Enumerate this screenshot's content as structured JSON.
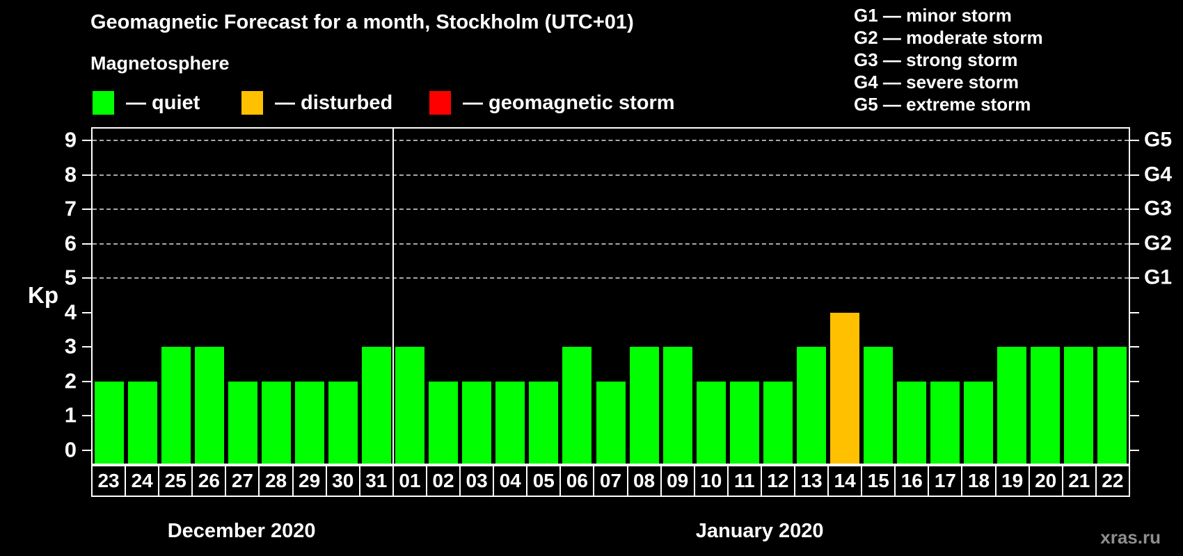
{
  "title": "Geomagnetic Forecast for a month, Stockholm (UTC+01)",
  "legend": {
    "title": "Magnetosphere",
    "items": [
      {
        "name": "quiet",
        "color": "#00ff00",
        "label": "— quiet"
      },
      {
        "name": "disturbed",
        "color": "#ffc000",
        "label": "— disturbed"
      },
      {
        "name": "storm",
        "color": "#ff0000",
        "label": "— geomagnetic storm"
      }
    ]
  },
  "g_legend": [
    "G1 — minor storm",
    "G2 — moderate storm",
    "G3 — strong storm",
    "G4 — severe storm",
    "G5 — extreme storm"
  ],
  "watermark": "xras.ru",
  "chart_data": {
    "type": "bar",
    "title": "Geomagnetic Forecast for a month, Stockholm (UTC+01)",
    "ylabel": "Kp",
    "ylim": [
      0,
      9.4
    ],
    "yticks": [
      0,
      1,
      2,
      3,
      4,
      5,
      6,
      7,
      8,
      9
    ],
    "gridlines_kp": [
      5,
      6,
      7,
      8,
      9
    ],
    "grid": "dashed",
    "legend_position": "top",
    "right_axis": [
      {
        "kp": 5,
        "label": "G1"
      },
      {
        "kp": 6,
        "label": "G2"
      },
      {
        "kp": 7,
        "label": "G3"
      },
      {
        "kp": 8,
        "label": "G4"
      },
      {
        "kp": 9,
        "label": "G5"
      }
    ],
    "colors": {
      "quiet": "#00ff00",
      "disturbed": "#ffc000",
      "storm": "#ff0000"
    },
    "color_thresholds": {
      "quiet_max_kp": 3,
      "disturbed_max_kp": 4
    },
    "months": [
      {
        "label": "December 2020",
        "days": [
          "23",
          "24",
          "25",
          "26",
          "27",
          "28",
          "29",
          "30",
          "31"
        ],
        "values": [
          2,
          2,
          3,
          3,
          2,
          2,
          2,
          2,
          3
        ]
      },
      {
        "label": "January 2020",
        "days": [
          "01",
          "02",
          "03",
          "04",
          "05",
          "06",
          "07",
          "08",
          "09",
          "10",
          "11",
          "12",
          "13",
          "14",
          "15",
          "16",
          "17",
          "18",
          "19",
          "20",
          "21",
          "22"
        ],
        "values": [
          3,
          2,
          2,
          2,
          2,
          3,
          2,
          3,
          3,
          2,
          2,
          2,
          3,
          4,
          3,
          2,
          2,
          2,
          3,
          3,
          3,
          3
        ]
      }
    ]
  }
}
